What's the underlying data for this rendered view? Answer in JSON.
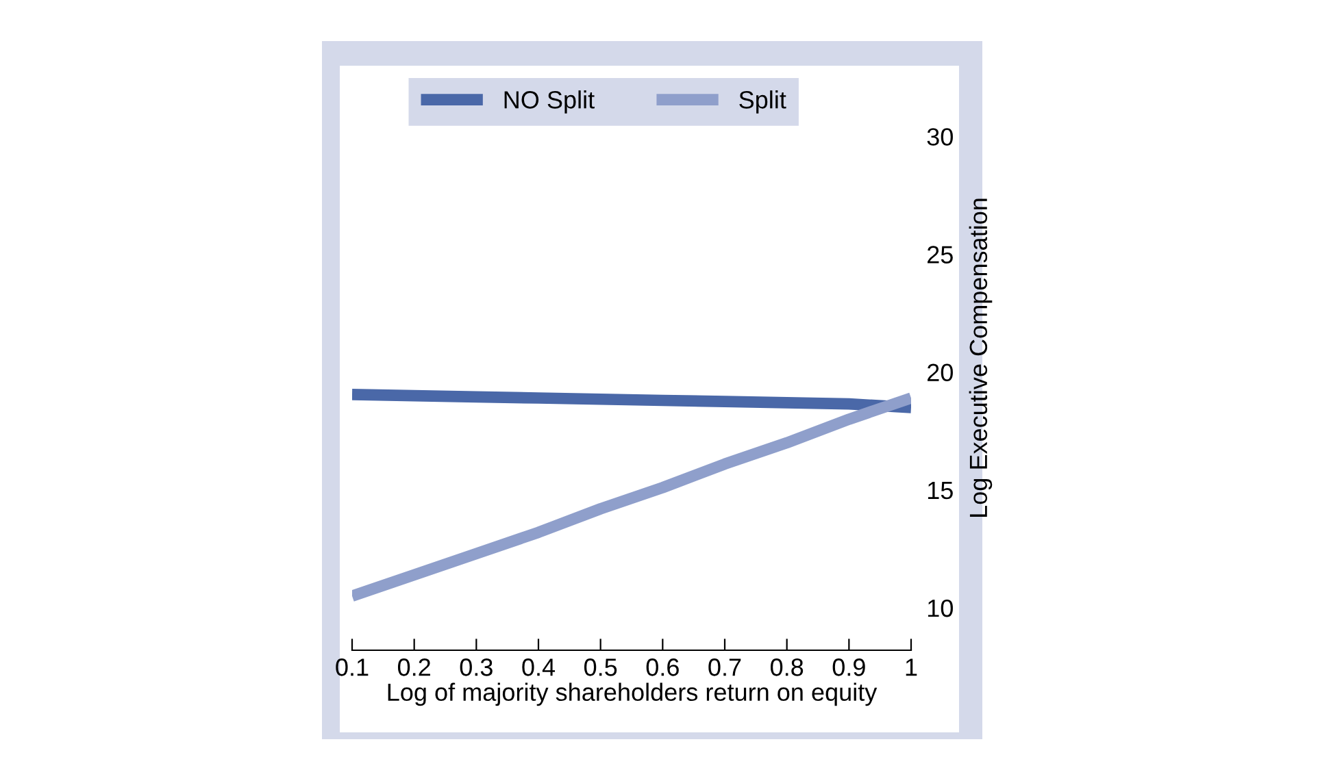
{
  "chart_data": {
    "type": "line",
    "xlabel": "Log of majority shareholders return on equity",
    "ylabel": "Log Executive Compensation",
    "x": [
      0.1,
      0.2,
      0.3,
      0.4,
      0.5,
      0.6,
      0.7,
      0.8,
      0.9,
      1
    ],
    "series": [
      {
        "name": "NO Split",
        "color": "#4a68a8",
        "values": [
          19.05,
          19.0,
          18.95,
          18.9,
          18.85,
          18.8,
          18.75,
          18.7,
          18.65,
          18.5
        ]
      },
      {
        "name": "Split",
        "color": "#8f9fcb",
        "values": [
          10.5,
          11.4,
          12.3,
          13.2,
          14.2,
          15.1,
          16.1,
          17.0,
          18.0,
          18.9
        ]
      }
    ],
    "xlim": [
      0.1,
      1
    ],
    "xticks": [
      0.1,
      0.2,
      0.3,
      0.4,
      0.5,
      0.6,
      0.7,
      0.8,
      0.9,
      1
    ],
    "ylim": [
      8.2,
      33
    ],
    "yticks": [
      10,
      15,
      20,
      25,
      30
    ],
    "grid": false,
    "legend": "top",
    "marker": "none",
    "line_style": "solid"
  }
}
